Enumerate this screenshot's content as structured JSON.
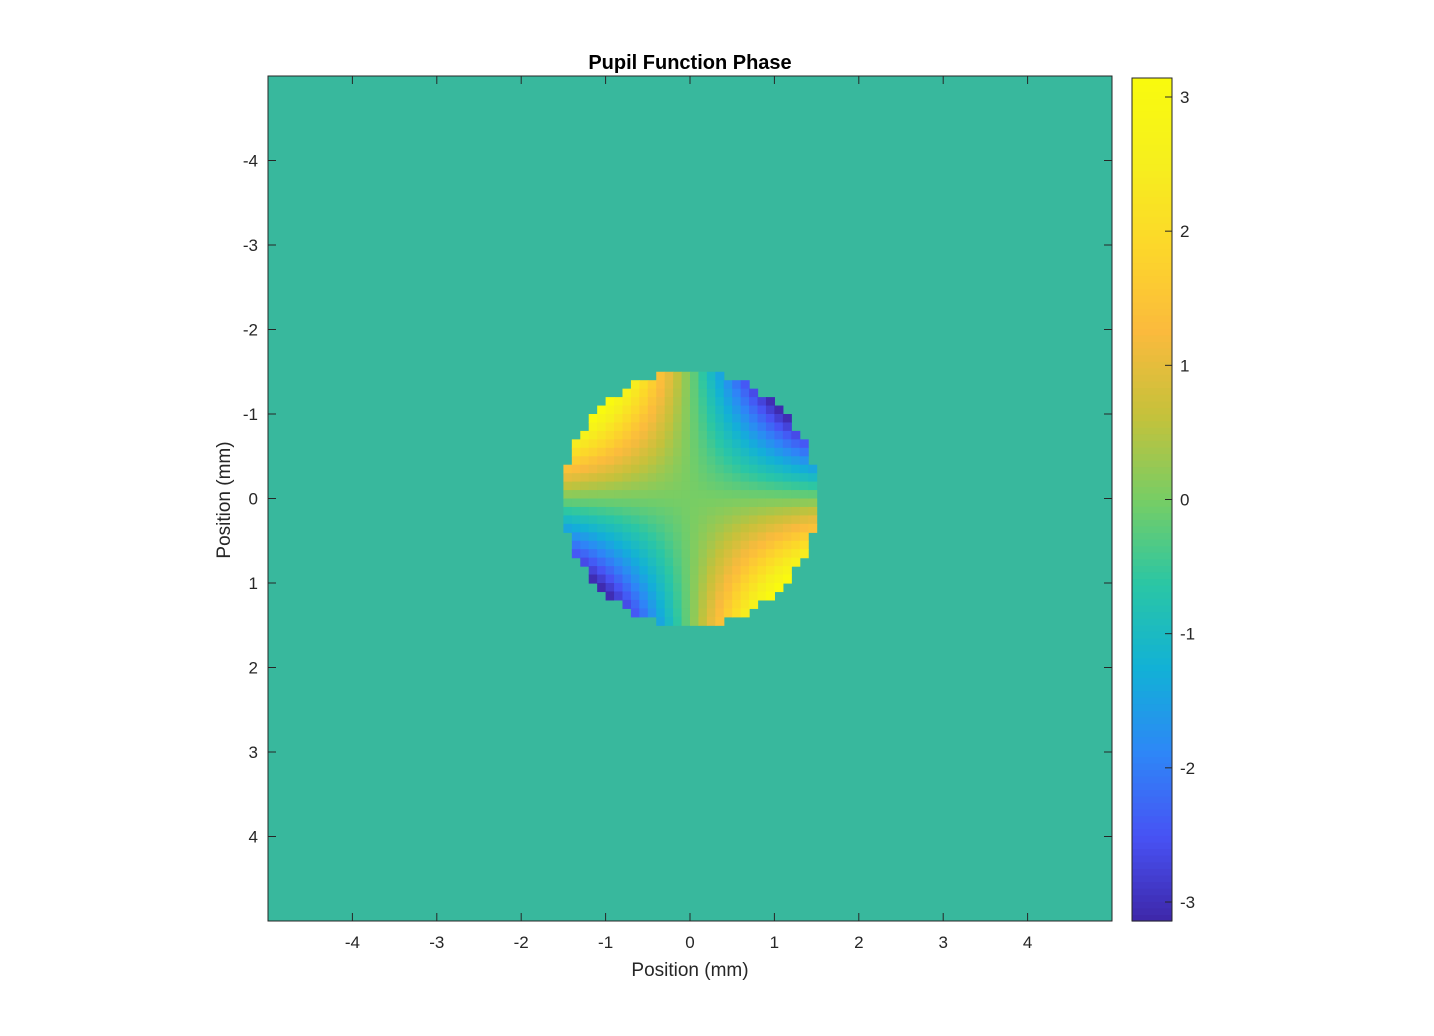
{
  "chart_data": {
    "type": "heatmap",
    "title": "Pupil Function Phase",
    "xlabel": "Position (mm)",
    "ylabel": "Position (mm)",
    "xlim": [
      -5,
      5
    ],
    "ylim": [
      -5,
      5
    ],
    "y_direction": "reversed",
    "x_ticks": [
      -4,
      -3,
      -2,
      -1,
      0,
      1,
      2,
      3,
      4
    ],
    "y_ticks": [
      -4,
      -3,
      -2,
      -1,
      0,
      1,
      2,
      3,
      4
    ],
    "x_tick_labels": [
      "-4",
      "-3",
      "-2",
      "-1",
      "0",
      "1",
      "2",
      "3",
      "4"
    ],
    "y_tick_labels": [
      "-4",
      "-3",
      "-2",
      "-1",
      "0",
      "1",
      "2",
      "3",
      "4"
    ],
    "colorbar": {
      "colormap": "parula",
      "clim": [
        -3.14159,
        3.14159
      ],
      "ticks": [
        -3,
        -2,
        -1,
        0,
        1,
        2,
        3
      ],
      "tick_labels": [
        "-3",
        "-2",
        "-1",
        "0",
        "1",
        "2",
        "3"
      ]
    },
    "field": {
      "background_value": 0,
      "pupil_center": [
        0,
        0
      ],
      "pupil_radius_mm": 1.5,
      "pixel_size_mm": 0.1,
      "phase_model": "pi * sin(2*theta) * (r/R)^2, theta measured from +x axis with y downward",
      "peak_regions": [
        {
          "quadrant": "upper-left",
          "value": 3.14
        },
        {
          "quadrant": "lower-right",
          "value": 3.14
        },
        {
          "quadrant": "upper-right",
          "value": -3.14
        },
        {
          "quadrant": "lower-left",
          "value": -3.14
        }
      ]
    },
    "grid": false,
    "colors": {
      "background": "#38b89d",
      "axes_box": "#262626"
    }
  }
}
